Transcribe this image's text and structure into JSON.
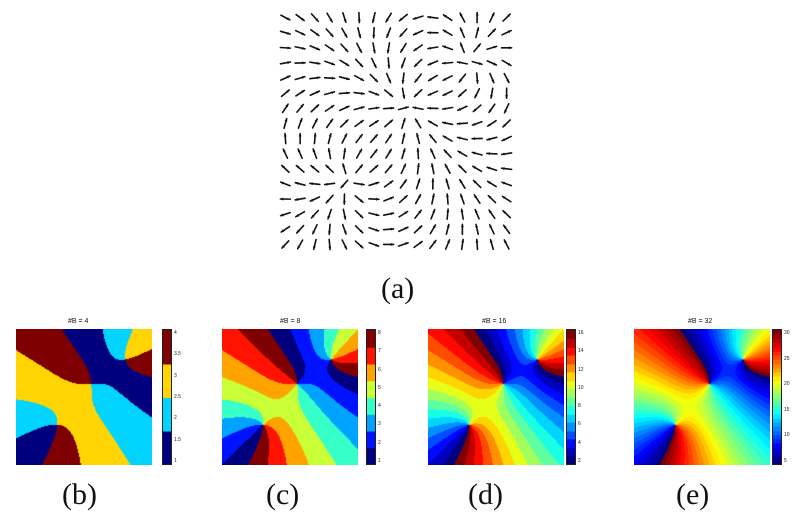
{
  "field": {
    "caption": "(a)"
  },
  "panels": [
    {
      "caption": "(b)",
      "title": "#B = 4",
      "bins": 4,
      "ticks": [
        "4",
        "3.5",
        "3",
        "2.5",
        "2",
        "1.5",
        "1"
      ]
    },
    {
      "caption": "(c)",
      "title": "#B = 8",
      "bins": 8,
      "ticks": [
        "8",
        "7",
        "6",
        "5",
        "4",
        "3",
        "2",
        "1"
      ]
    },
    {
      "caption": "(d)",
      "title": "#B = 16",
      "bins": 16,
      "ticks": [
        "16",
        "14",
        "12",
        "10",
        "8",
        "6",
        "4",
        "2"
      ]
    },
    {
      "caption": "(e)",
      "title": "#B = 32",
      "bins": 32,
      "ticks": [
        "30",
        "25",
        "20",
        "15",
        "10",
        "5"
      ]
    }
  ],
  "colors": {
    "colormap": "jet",
    "arrow": "#111111"
  }
}
